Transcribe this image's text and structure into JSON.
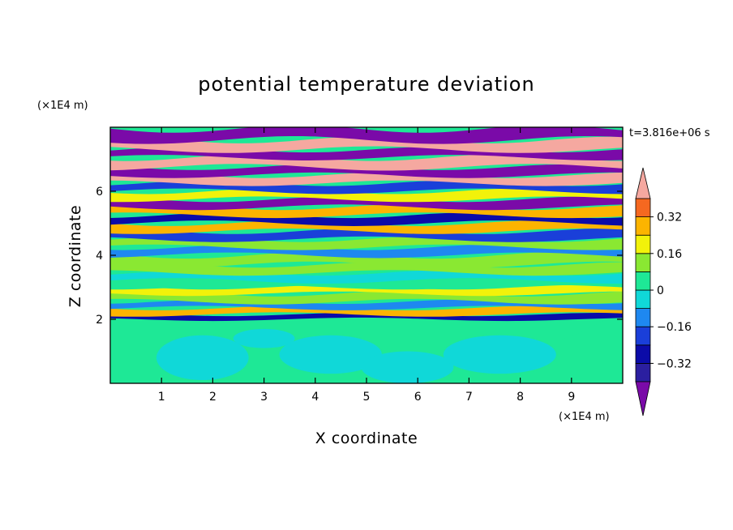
{
  "chart_data": {
    "type": "heatmap",
    "title": "potential temperature deviation",
    "xlabel": "X coordinate",
    "ylabel": "Z coordinate",
    "x_unit": "(×1E4 m)",
    "y_unit": "(×1E4 m)",
    "time_label": "t=3.816e+06 s",
    "xlim": [
      0,
      10
    ],
    "ylim": [
      0,
      8
    ],
    "x_ticks": [
      "1",
      "2",
      "3",
      "4",
      "5",
      "6",
      "7",
      "8",
      "9"
    ],
    "y_ticks": [
      "2",
      "4",
      "6"
    ],
    "colorbar": {
      "levels": [
        -0.48,
        -0.4,
        -0.32,
        -0.24,
        -0.16,
        -0.08,
        0,
        0.08,
        0.16,
        0.24,
        0.32,
        0.4,
        0.48
      ],
      "colors": [
        "#7a0aa8",
        "#2b1fa0",
        "#0b0ba8",
        "#1a3fd9",
        "#1e88f0",
        "#10d8d8",
        "#1ee896",
        "#8ae832",
        "#f2f20a",
        "#fcb400",
        "#f56820",
        "#f01818",
        "#f5a8a0"
      ],
      "tick_labels": [
        "0.32",
        "0.16",
        "0",
        "−0.16",
        "−0.32"
      ],
      "tick_values": [
        0.32,
        0.16,
        0,
        -0.16,
        -0.32
      ]
    },
    "bands": [
      {
        "z0": 0.0,
        "z1": 2.0,
        "value": 0.0
      },
      {
        "z0": 2.0,
        "z1": 2.15,
        "value": -0.3
      },
      {
        "z0": 2.15,
        "z1": 2.35,
        "value": 0.25
      },
      {
        "z0": 2.35,
        "z1": 2.55,
        "value": -0.1
      },
      {
        "z0": 2.55,
        "z1": 2.8,
        "value": 0.08
      },
      {
        "z0": 2.8,
        "z1": 3.0,
        "value": 0.2
      },
      {
        "z0": 3.0,
        "z1": 3.2,
        "value": 0.05
      },
      {
        "z0": 3.2,
        "z1": 3.45,
        "value": -0.05
      },
      {
        "z0": 3.45,
        "z1": 3.7,
        "value": 0.1
      },
      {
        "z0": 3.7,
        "z1": 4.0,
        "value": 0.15
      },
      {
        "z0": 4.0,
        "z1": 4.25,
        "value": -0.1
      },
      {
        "z0": 4.25,
        "z1": 4.5,
        "value": 0.12
      },
      {
        "z0": 4.5,
        "z1": 4.75,
        "value": -0.2
      },
      {
        "z0": 4.75,
        "z1": 5.0,
        "value": 0.25
      },
      {
        "z0": 5.0,
        "z1": 5.25,
        "value": -0.3
      },
      {
        "z0": 5.25,
        "z1": 5.5,
        "value": 0.3
      },
      {
        "z0": 5.5,
        "z1": 5.75,
        "value": -0.45
      },
      {
        "z0": 5.75,
        "z1": 6.0,
        "value": 0.2
      },
      {
        "z0": 6.0,
        "z1": 6.25,
        "value": -0.2
      },
      {
        "z0": 6.25,
        "z1": 6.5,
        "value": 0.45
      },
      {
        "z0": 6.5,
        "z1": 6.75,
        "value": -0.5
      },
      {
        "z0": 6.75,
        "z1": 7.05,
        "value": 0.5
      },
      {
        "z0": 7.05,
        "z1": 7.3,
        "value": -0.5
      },
      {
        "z0": 7.3,
        "z1": 7.6,
        "value": 0.5
      },
      {
        "z0": 7.6,
        "z1": 7.95,
        "value": -0.5
      }
    ]
  }
}
